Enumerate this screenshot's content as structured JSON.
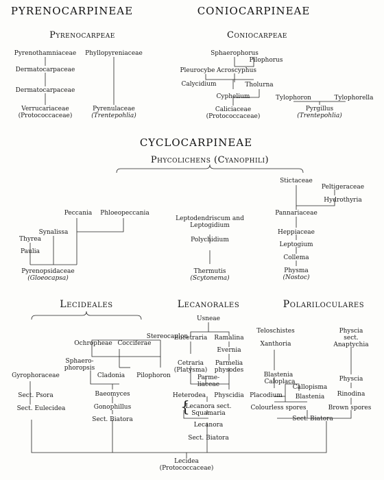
{
  "headings": {
    "pyrenocarpineae": "PYRENOCARPINEAE",
    "coniocarpineae": "CONIOCARPINEAE",
    "pyrenocarpeae": "Pyrenocarpeae",
    "coniocarpeae": "Coniocarpeae",
    "cyclocarpineae": "CYCLOCARPINEAE",
    "phycolichens": "Phycolichens (Cyanophili)",
    "lecideales": "Lecideales",
    "lecanorales": "Lecanorales",
    "polariloculares": "Polariloculares"
  },
  "pyreno": {
    "pyrenothamniaceae": "Pyrenothamniaceae",
    "dermatocarpaceae1": "Dermatocarpaceae",
    "dermatocarpaceae2": "Dermatocarpaceae",
    "verrucariaceae": "Verrucariaceae",
    "protococcaceae": "(Protococcaceae)",
    "phyllopyreniaceae": "Phyllopyreniaceae",
    "pyrenulaceae": "Pyrenulaceae",
    "trentepohlia": "(Trentepohlia)"
  },
  "conio": {
    "sphaerophorus": "Sphaerophorus",
    "pilophorus": "Pilophorus",
    "acroscyphus": "Acroscyphus",
    "pleurocybe": "Pleurocybe",
    "calycidium": "Calycidium",
    "tholurna": "Tholurna",
    "cyphelium": "Cyphelium",
    "caliciaceae": "Caliciaceae",
    "protococcaceae": "(Protococcaceae)",
    "tylophoron": "Tylophoron",
    "tylophorella": "Tylophorella",
    "pyrgillus": "Pyrgillus",
    "trentepohlia": "(Trentepohlia)"
  },
  "phyco": {
    "peccania": "Peccania",
    "phloeopeccania": "Phloeopeccania",
    "synalissa": "Synalissa",
    "thyrea": "Thyrea",
    "paulia": "Paulia",
    "pyrenopsidaceae": "Pyrenopsidaceae",
    "gloeocapsa": "(Gloeocapsa)",
    "leptodendriscum": "Leptodendriscum and",
    "leptogidium": "Leptogidium",
    "polychidium": "Polychidium",
    "thermutis": "Thermutis",
    "scytonema": "(Scytonema)",
    "stictaceae": "Stictaceae",
    "peltigeraceae": "Peltigeraceae",
    "hydrothyria": "Hydrothyria",
    "pannariaceae": "Pannariaceae",
    "heppiaceae": "Heppiaceae",
    "leptogium": "Leptogium",
    "collema": "Collema",
    "physma": "Physma",
    "nostoc": "(Nostoc)"
  },
  "lecid": {
    "stereocaulon": "Stereocaulon",
    "ochropheae": "Ochropheae",
    "cocciferae": "Cocciferae",
    "sphaero": "Sphaero-",
    "phoropsis": "phoropsis",
    "gyrophoraceae": "Gyrophoraceae",
    "cladonia": "Cladonia",
    "pilophoron": "Pilophoron",
    "baeomyces": "Baeomyces",
    "gonophillus": "Gonophillus",
    "sect_biatora": "Sect. Biatora",
    "sect_psora": "Sect. Psora",
    "sect_eulecidea": "Sect. Eulecidea"
  },
  "lecan": {
    "usneae": "Usneae",
    "eucetraria": "Eucetraria",
    "ramalina": "Ramalina",
    "evernia": "Evernia",
    "cetraria": "Cetraria",
    "platysma": "(Platysma)",
    "parmelia": "Parmelia",
    "physodes": "physodes",
    "parme": "Parme-",
    "liaceae": "liaceae",
    "heterodea": "Heterodea",
    "physcidia": "Physcidia",
    "lecanora_sect": "Lecanora sect.",
    "squamaria": "Squamaria",
    "lecanora": "Lecanora",
    "sect_biatora": "Sect. Biatora"
  },
  "polar": {
    "teloschistes": "Teloschistes",
    "xanthoria": "Xanthoria",
    "physcia_sect": "Physcia",
    "sect": "sect.",
    "anaptychia": "Anaptychia",
    "physcia": "Physcia",
    "blastenia_root": "Blastenia",
    "caloplaca": "Caloplaca",
    "callopisma": "Callopisma",
    "placodium": "Placodium",
    "blastenia": "Blastenia",
    "colourless": "Colourless spores",
    "rinodina": "Rinodina",
    "brown": "Brown spores",
    "sect_biatora": "Sect. Biatora"
  },
  "root": {
    "lecidea": "Lecidea",
    "protococcaceae": "(Protococcaceae)"
  }
}
